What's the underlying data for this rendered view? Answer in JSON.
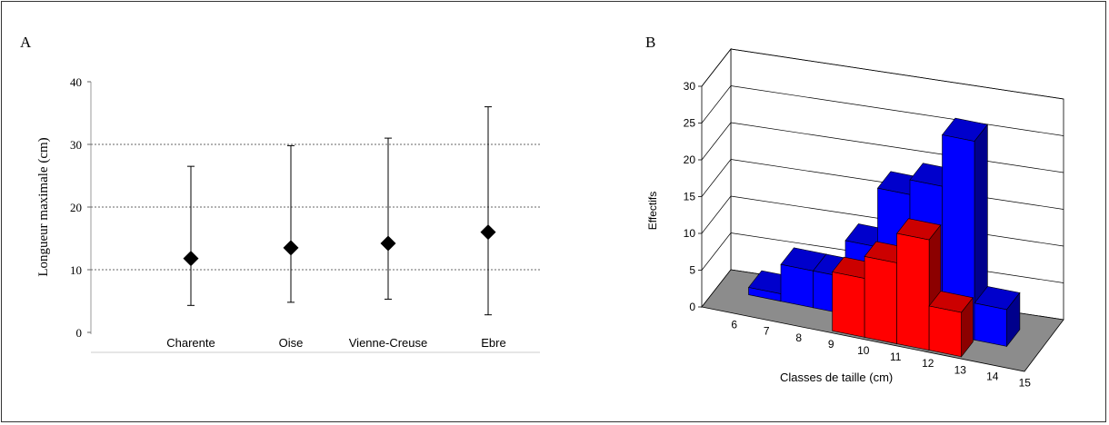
{
  "chart_data": [
    {
      "panel_label": "A",
      "type": "scatter",
      "variant": "range-with-mean",
      "categories": [
        "Charente",
        "Oise",
        "Vienne-Creuse",
        "Ebre"
      ],
      "mean": [
        11.8,
        13.5,
        14.2,
        16.0
      ],
      "min": [
        4.3,
        4.8,
        5.3,
        2.8
      ],
      "max": [
        26.5,
        29.8,
        31.0,
        36.0
      ],
      "ylabel": "Longueur maximale (cm)",
      "xlabel": "",
      "ylim": [
        0,
        40
      ],
      "yticks": [
        0,
        10,
        20,
        30,
        40
      ],
      "grid": true,
      "marker_color": "#000000"
    },
    {
      "panel_label": "B",
      "type": "bar",
      "variant": "3d-histogram",
      "categories": [
        "6",
        "7",
        "8",
        "9",
        "10",
        "11",
        "12",
        "13",
        "14",
        "15"
      ],
      "series": [
        {
          "values": [
            0,
            1,
            5,
            5,
            10,
            18,
            20,
            27,
            5,
            0
          ],
          "color": "#0000ff"
        },
        {
          "values": [
            0,
            0,
            0,
            0,
            8,
            11,
            15,
            6,
            0,
            0
          ],
          "color": "#ff0000"
        }
      ],
      "xlabel": "Classes de taille (cm)",
      "ylabel": "Effectifs",
      "ylim": [
        0,
        30
      ],
      "yticks": [
        0,
        5,
        10,
        15,
        20,
        25,
        30
      ],
      "grid": true,
      "floor_color": "#8c8c8c"
    }
  ]
}
